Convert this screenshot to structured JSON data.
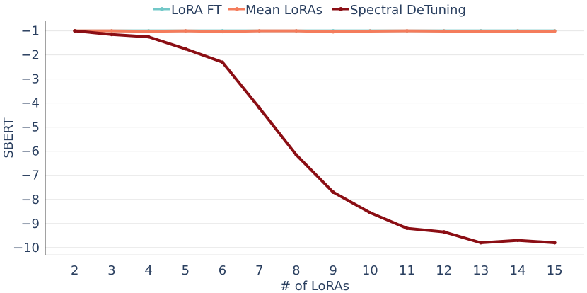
{
  "chart_data": {
    "type": "line",
    "title": "",
    "xlabel": "# of LoRAs",
    "ylabel": "SBERT",
    "x": [
      2,
      3,
      4,
      5,
      6,
      7,
      8,
      9,
      10,
      11,
      12,
      13,
      14,
      15
    ],
    "x_tick_labels": [
      "2",
      "3",
      "4",
      "5",
      "6",
      "7",
      "8",
      "9",
      "10",
      "11",
      "12",
      "13",
      "14",
      "15"
    ],
    "xlim": [
      1.2,
      15.8
    ],
    "y_ticks": [
      -1,
      -2,
      -3,
      -4,
      -5,
      -6,
      -7,
      -8,
      -9,
      -10
    ],
    "y_tick_labels": [
      "−1",
      "−2",
      "−3",
      "−4",
      "−5",
      "−6",
      "−7",
      "−8",
      "−9",
      "−10"
    ],
    "ylim": [
      -10.3,
      -0.6
    ],
    "grid": true,
    "legend_position": "top-center",
    "series": [
      {
        "name": "LoRA FT",
        "color": "#72c8c8",
        "values": [
          -1.0,
          -1.0,
          -1.0,
          -1.0,
          -1.0,
          -1.0,
          -1.0,
          -1.0,
          -1.0,
          -1.0,
          -1.0,
          -1.0,
          -1.0,
          -1.0
        ]
      },
      {
        "name": "Mean LoRAs",
        "color": "#f47c5c",
        "values": [
          -1.0,
          -1.0,
          -1.02,
          -1.0,
          -1.03,
          -1.0,
          -1.0,
          -1.04,
          -1.01,
          -1.0,
          -1.01,
          -1.02,
          -1.01,
          -1.01
        ]
      },
      {
        "name": "Spectral DeTuning",
        "color": "#8b0e14",
        "values": [
          -1.0,
          -1.15,
          -1.25,
          -1.75,
          -2.3,
          -4.2,
          -6.15,
          -7.7,
          -8.55,
          -9.2,
          -9.35,
          -9.8,
          -9.7,
          -9.8
        ]
      }
    ]
  }
}
